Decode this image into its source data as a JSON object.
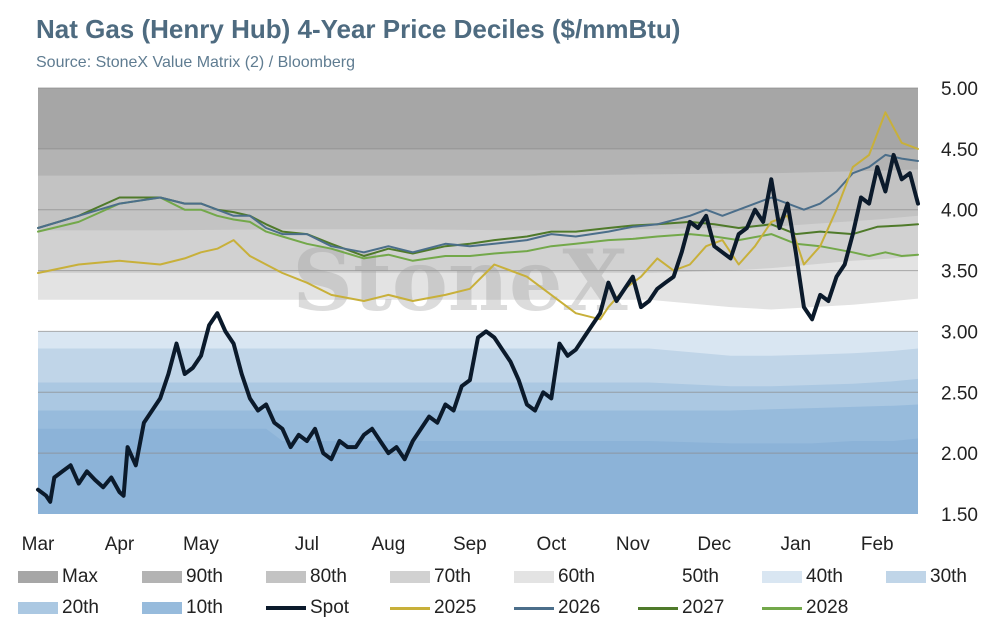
{
  "header": {
    "title": "Nat Gas (Henry Hub) 4-Year Price Deciles ($/mmBtu)",
    "subtitle": "Source: StoneX Value Matrix (2) / Bloomberg"
  },
  "watermark": "StoneX",
  "chart_data": {
    "type": "area",
    "title": "Nat Gas (Henry Hub) 4-Year Price Deciles ($/mmBtu)",
    "subtitle": "Source: StoneX Value Matrix (2) / Bloomberg",
    "xlabel": "",
    "ylabel": "",
    "ylim": [
      1.5,
      5.0
    ],
    "yticks": [
      "5.00",
      "4.50",
      "4.00",
      "3.50",
      "3.00",
      "2.50",
      "2.00",
      "1.50"
    ],
    "y_axis_side": "right",
    "x_tick_labels": [
      "Mar",
      "Apr",
      "May",
      "Jul",
      "Aug",
      "Sep",
      "Oct",
      "Nov",
      "Dec",
      "Jan",
      "Feb"
    ],
    "x_tick_positions": [
      0,
      1,
      2,
      3.3,
      4.3,
      5.3,
      6.3,
      7.3,
      8.3,
      9.3,
      10.3
    ],
    "x_range": [
      0,
      10.8
    ],
    "grid": "horizontal",
    "legend_position": "bottom",
    "legend": [
      "Max",
      "90th",
      "80th",
      "70th",
      "60th",
      "50th",
      "40th",
      "30th",
      "20th",
      "10th",
      "Spot",
      "2025",
      "2026",
      "2027",
      "2028"
    ],
    "bands": [
      {
        "name": "Max",
        "color": "#a6a6a6",
        "x": [
          0,
          10.8
        ],
        "top": [
          5.0,
          5.0
        ]
      },
      {
        "name": "90th",
        "color": "#b3b3b3",
        "x": [
          0,
          10.8
        ],
        "top": [
          4.5,
          4.5
        ]
      },
      {
        "name": "80th",
        "color": "#c3c3c3",
        "x": [
          0,
          1.5,
          3,
          4.5,
          6,
          7.5,
          9,
          10.3,
          10.8
        ],
        "top": [
          4.28,
          4.28,
          4.28,
          4.28,
          4.28,
          4.29,
          4.3,
          4.32,
          4.33
        ]
      },
      {
        "name": "70th",
        "color": "#d1d1d1",
        "x": [
          0,
          1.5,
          3,
          4.5,
          6,
          7.5,
          9,
          10.3,
          10.8
        ],
        "top": [
          3.83,
          3.83,
          3.84,
          3.84,
          3.83,
          3.84,
          3.86,
          3.92,
          3.95
        ]
      },
      {
        "name": "60th",
        "color": "#e3e3e3",
        "x": [
          0,
          1.5,
          3,
          4.5,
          6,
          7.5,
          8.5,
          9,
          9.5,
          10,
          10.5,
          10.8
        ],
        "top": [
          3.48,
          3.48,
          3.48,
          3.48,
          3.48,
          3.48,
          3.5,
          3.52,
          3.55,
          3.58,
          3.6,
          3.62
        ]
      },
      {
        "name": "50th",
        "color": "#ffffff",
        "x": [
          0,
          1.5,
          3,
          4.5,
          6,
          7.5,
          8.5,
          9,
          9.5,
          10,
          10.5,
          10.8
        ],
        "top": [
          3.26,
          3.26,
          3.26,
          3.26,
          3.26,
          3.26,
          3.2,
          3.18,
          3.2,
          3.22,
          3.25,
          3.27
        ]
      },
      {
        "name": "40th",
        "color": "#d9e6f2",
        "x": [
          0,
          1.5,
          3,
          4.5,
          6,
          7.5,
          9,
          10.3,
          10.8
        ],
        "top": [
          3.0,
          3.0,
          3.0,
          3.0,
          3.0,
          3.0,
          3.0,
          3.0,
          3.0
        ]
      },
      {
        "name": "30th",
        "color": "#c0d5e8",
        "x": [
          0,
          1.5,
          3,
          4.5,
          6,
          7.5,
          8.5,
          9,
          9.5,
          10,
          10.5,
          10.8
        ],
        "top": [
          2.86,
          2.86,
          2.86,
          2.86,
          2.86,
          2.86,
          2.8,
          2.8,
          2.81,
          2.82,
          2.84,
          2.86
        ]
      },
      {
        "name": "20th",
        "color": "#abc8e2",
        "x": [
          0,
          1.5,
          3,
          4.5,
          6,
          7.5,
          8.5,
          9,
          9.5,
          10,
          10.5,
          10.8
        ],
        "top": [
          2.58,
          2.58,
          2.58,
          2.58,
          2.58,
          2.58,
          2.55,
          2.55,
          2.56,
          2.57,
          2.59,
          2.61
        ]
      },
      {
        "name": "10th",
        "color": "#97bbdc",
        "x": [
          0,
          1.5,
          3,
          4.5,
          6,
          7.5,
          8.5,
          9,
          9.5,
          10,
          10.5,
          10.8
        ],
        "top": [
          2.35,
          2.35,
          2.35,
          2.35,
          2.35,
          2.35,
          2.35,
          2.36,
          2.37,
          2.38,
          2.39,
          2.4
        ]
      },
      {
        "name": "10th-lower",
        "color": "#8cb3d8",
        "x": [
          0,
          1.5,
          2.8,
          3.0,
          4.5,
          6,
          7.5,
          8.5,
          9,
          9.5,
          10,
          10.5,
          10.8
        ],
        "top": [
          2.2,
          2.2,
          2.2,
          2.1,
          2.1,
          2.1,
          2.1,
          2.08,
          2.08,
          2.08,
          2.1,
          2.1,
          2.12
        ]
      },
      {
        "name": "Min",
        "color": "#8cb3d8",
        "x": [
          0,
          2.8,
          2.8,
          10.8
        ],
        "top": [
          1.5,
          1.5,
          1.58,
          1.58
        ]
      }
    ],
    "series": [
      {
        "name": "Spot",
        "color": "#0b1a2b",
        "x": [
          0,
          0.1,
          0.15,
          0.2,
          0.3,
          0.4,
          0.5,
          0.6,
          0.7,
          0.8,
          0.9,
          1.0,
          1.05,
          1.1,
          1.2,
          1.3,
          1.4,
          1.5,
          1.6,
          1.7,
          1.8,
          1.9,
          2.0,
          2.1,
          2.2,
          2.3,
          2.4,
          2.5,
          2.6,
          2.7,
          2.8,
          2.9,
          3.0,
          3.1,
          3.2,
          3.3,
          3.4,
          3.5,
          3.6,
          3.7,
          3.8,
          3.9,
          4.0,
          4.1,
          4.2,
          4.3,
          4.4,
          4.5,
          4.6,
          4.7,
          4.8,
          4.9,
          5.0,
          5.1,
          5.2,
          5.3,
          5.4,
          5.5,
          5.6,
          5.7,
          5.8,
          5.9,
          6.0,
          6.1,
          6.2,
          6.3,
          6.4,
          6.5,
          6.6,
          6.7,
          6.8,
          6.9,
          7.0,
          7.1,
          7.2,
          7.3,
          7.4,
          7.5,
          7.6,
          7.7,
          7.8,
          7.9,
          8.0,
          8.1,
          8.2,
          8.3,
          8.4,
          8.5,
          8.6,
          8.7,
          8.8,
          8.9,
          9.0,
          9.05,
          9.1,
          9.2,
          9.3,
          9.4,
          9.5,
          9.6,
          9.7,
          9.8,
          9.9,
          10.0,
          10.1,
          10.2,
          10.3,
          10.4,
          10.5,
          10.6,
          10.7,
          10.8
        ],
        "values": [
          1.7,
          1.65,
          1.6,
          1.8,
          1.85,
          1.9,
          1.75,
          1.85,
          1.78,
          1.72,
          1.8,
          1.68,
          1.65,
          2.05,
          1.9,
          2.25,
          2.35,
          2.45,
          2.65,
          2.9,
          2.65,
          2.7,
          2.8,
          3.05,
          3.15,
          3.0,
          2.9,
          2.65,
          2.45,
          2.35,
          2.4,
          2.25,
          2.2,
          2.05,
          2.15,
          2.1,
          2.2,
          2.0,
          1.95,
          2.1,
          2.05,
          2.05,
          2.15,
          2.2,
          2.1,
          2.0,
          2.05,
          1.95,
          2.1,
          2.2,
          2.3,
          2.25,
          2.4,
          2.35,
          2.55,
          2.6,
          2.95,
          3.0,
          2.95,
          2.85,
          2.75,
          2.6,
          2.4,
          2.35,
          2.5,
          2.45,
          2.9,
          2.8,
          2.85,
          2.95,
          3.05,
          3.15,
          3.4,
          3.25,
          3.35,
          3.45,
          3.2,
          3.25,
          3.35,
          3.4,
          3.45,
          3.65,
          3.9,
          3.85,
          3.95,
          3.7,
          3.65,
          3.6,
          3.8,
          3.85,
          4.0,
          3.9,
          4.25,
          4.05,
          3.85,
          4.05,
          3.65,
          3.2,
          3.1,
          3.3,
          3.25,
          3.45,
          3.55,
          3.8,
          4.1,
          4.05,
          4.35,
          4.15,
          4.45,
          4.25,
          4.3,
          4.05
        ]
      },
      {
        "name": "2025",
        "color": "#c8b03a",
        "x": [
          0,
          0.5,
          1.0,
          1.5,
          1.8,
          2.0,
          2.2,
          2.4,
          2.6,
          2.8,
          3.0,
          3.3,
          3.6,
          4.0,
          4.3,
          4.6,
          5.0,
          5.3,
          5.6,
          6.0,
          6.3,
          6.6,
          6.9,
          7.0,
          7.2,
          7.4,
          7.6,
          7.8,
          8.0,
          8.2,
          8.4,
          8.6,
          8.8,
          9.0,
          9.2,
          9.4,
          9.6,
          9.8,
          10.0,
          10.2,
          10.4,
          10.6,
          10.8
        ],
        "values": [
          3.48,
          3.55,
          3.58,
          3.55,
          3.6,
          3.65,
          3.68,
          3.75,
          3.62,
          3.55,
          3.48,
          3.4,
          3.3,
          3.25,
          3.3,
          3.25,
          3.3,
          3.35,
          3.55,
          3.45,
          3.3,
          3.15,
          3.1,
          3.2,
          3.35,
          3.45,
          3.6,
          3.5,
          3.55,
          3.7,
          3.75,
          3.55,
          3.7,
          3.9,
          3.95,
          3.55,
          3.7,
          4.0,
          4.35,
          4.45,
          4.8,
          4.55,
          4.5
        ]
      },
      {
        "name": "2026",
        "color": "#4b6e8a",
        "x": [
          0,
          0.5,
          1.0,
          1.5,
          1.8,
          2.0,
          2.2,
          2.4,
          2.6,
          2.8,
          3.0,
          3.3,
          3.6,
          4.0,
          4.3,
          4.6,
          5.0,
          5.3,
          5.6,
          6.0,
          6.3,
          6.6,
          7.0,
          7.3,
          7.6,
          8.0,
          8.2,
          8.4,
          8.6,
          8.8,
          9.0,
          9.2,
          9.4,
          9.6,
          9.8,
          10.0,
          10.2,
          10.4,
          10.6,
          10.8
        ],
        "values": [
          3.85,
          3.95,
          4.05,
          4.1,
          4.05,
          4.05,
          4.0,
          3.95,
          3.95,
          3.85,
          3.8,
          3.8,
          3.7,
          3.65,
          3.7,
          3.65,
          3.72,
          3.7,
          3.72,
          3.75,
          3.8,
          3.78,
          3.82,
          3.86,
          3.88,
          3.95,
          4.0,
          3.95,
          4.0,
          4.05,
          4.1,
          4.05,
          4.0,
          4.05,
          4.15,
          4.3,
          4.35,
          4.45,
          4.42,
          4.4
        ]
      },
      {
        "name": "2027",
        "color": "#4f7a2a",
        "x": [
          0,
          0.5,
          1.0,
          1.5,
          1.8,
          2.0,
          2.2,
          2.4,
          2.6,
          2.8,
          3.0,
          3.3,
          3.6,
          4.0,
          4.3,
          4.6,
          5.0,
          5.3,
          5.6,
          6.0,
          6.3,
          6.6,
          7.0,
          7.3,
          7.6,
          8.0,
          8.3,
          8.6,
          9.0,
          9.3,
          9.6,
          10.0,
          10.3,
          10.6,
          10.8
        ],
        "values": [
          3.85,
          3.95,
          4.1,
          4.1,
          4.05,
          4.05,
          4.0,
          3.98,
          3.95,
          3.88,
          3.82,
          3.8,
          3.72,
          3.62,
          3.68,
          3.64,
          3.7,
          3.72,
          3.75,
          3.78,
          3.82,
          3.82,
          3.85,
          3.87,
          3.88,
          3.9,
          3.88,
          3.85,
          3.88,
          3.8,
          3.82,
          3.8,
          3.86,
          3.87,
          3.88
        ]
      },
      {
        "name": "2028",
        "color": "#73a84a",
        "x": [
          0,
          0.5,
          1.0,
          1.5,
          1.8,
          2.0,
          2.2,
          2.4,
          2.6,
          2.8,
          3.0,
          3.3,
          3.6,
          4.0,
          4.3,
          4.6,
          5.0,
          5.3,
          5.6,
          6.0,
          6.3,
          6.6,
          7.0,
          7.3,
          7.6,
          8.0,
          8.3,
          8.6,
          9.0,
          9.3,
          9.6,
          10.0,
          10.2,
          10.4,
          10.6,
          10.8
        ],
        "values": [
          3.82,
          3.9,
          4.05,
          4.1,
          4.0,
          4.0,
          3.95,
          3.92,
          3.9,
          3.82,
          3.78,
          3.72,
          3.68,
          3.6,
          3.63,
          3.58,
          3.62,
          3.62,
          3.64,
          3.66,
          3.7,
          3.72,
          3.75,
          3.76,
          3.78,
          3.8,
          3.78,
          3.75,
          3.8,
          3.72,
          3.7,
          3.65,
          3.62,
          3.65,
          3.62,
          3.63
        ]
      }
    ]
  }
}
